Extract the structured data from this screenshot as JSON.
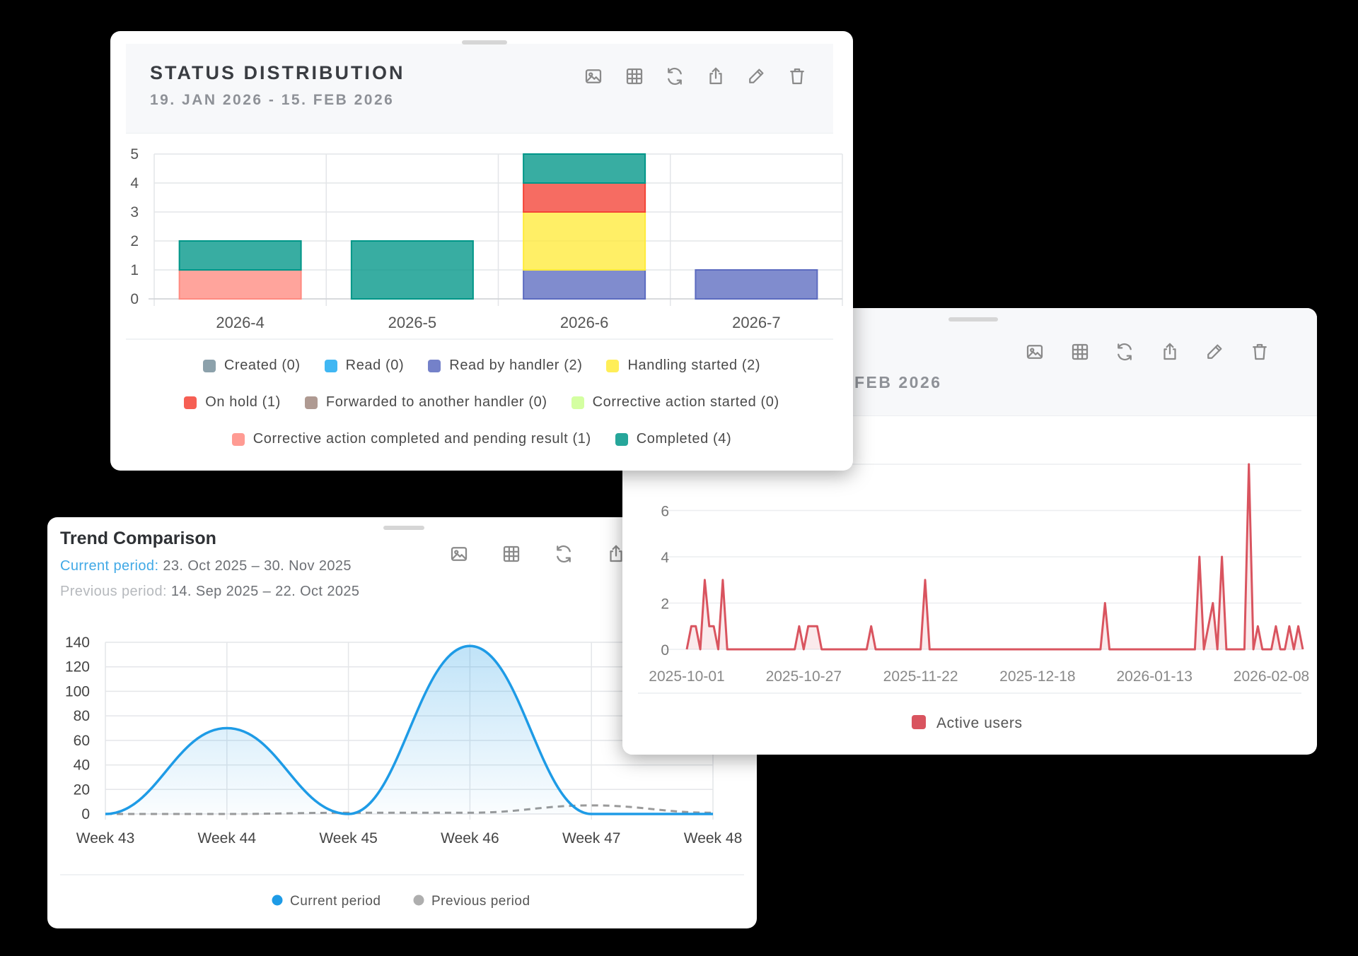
{
  "status_card": {
    "title": "STATUS DISTRIBUTION",
    "date_range": "19. JAN 2026 - 15. FEB 2026",
    "toolbar": [
      "image-icon",
      "table-icon",
      "refresh-icon",
      "share-icon",
      "edit-icon",
      "delete-icon"
    ]
  },
  "active_card": {
    "date_range_fragment": "FEB 2026",
    "toolbar": [
      "image-icon",
      "table-icon",
      "refresh-icon",
      "share-icon",
      "edit-icon",
      "delete-icon"
    ]
  },
  "trend_card": {
    "title": "Trend Comparison",
    "current_label": "Current period:",
    "current_range": "23. Oct 2025 – 30. Nov 2025",
    "previous_label": "Previous period:",
    "previous_range": "14. Sep 2025 – 22. Oct 2025",
    "toolbar": [
      "image-icon",
      "table-icon",
      "refresh-icon",
      "share-icon"
    ]
  },
  "chart_data": [
    {
      "type": "bar",
      "stacked": true,
      "title": "STATUS DISTRIBUTION",
      "categories": [
        "2026-4",
        "2026-5",
        "2026-6",
        "2026-7"
      ],
      "ylim": [
        0,
        5
      ],
      "yticks": [
        0,
        1,
        2,
        3,
        4,
        5
      ],
      "grid": true,
      "legend_position": "bottom",
      "series": [
        {
          "name": "Created (0)",
          "color": "#78909c",
          "values": [
            0,
            0,
            0,
            0
          ]
        },
        {
          "name": "Read (0)",
          "color": "#1eaaf1",
          "values": [
            0,
            0,
            0,
            0
          ]
        },
        {
          "name": "Read by handler (2)",
          "color": "#5c6bc0",
          "values": [
            0,
            0,
            1,
            1
          ]
        },
        {
          "name": "Handling started (2)",
          "color": "#ffeb3b",
          "values": [
            0,
            0,
            2,
            0
          ]
        },
        {
          "name": "On hold (1)",
          "color": "#f44336",
          "values": [
            0,
            0,
            1,
            0
          ]
        },
        {
          "name": "Forwarded to another handler (0)",
          "color": "#a1887f",
          "values": [
            0,
            0,
            0,
            0
          ]
        },
        {
          "name": "Corrective action started (0)",
          "color": "#ccff90",
          "values": [
            0,
            0,
            0,
            0
          ]
        },
        {
          "name": "Corrective action completed and pending result (1)",
          "color": "#ff8a80",
          "values": [
            1,
            0,
            0,
            0
          ]
        },
        {
          "name": "Completed (4)",
          "color": "#009688",
          "values": [
            1,
            2,
            1,
            0
          ]
        }
      ]
    },
    {
      "type": "area",
      "ylim": [
        0,
        8
      ],
      "yticks": [
        0,
        2,
        4,
        6
      ],
      "x_ticks": [
        "2025-10-01",
        "2025-10-27",
        "2025-11-22",
        "2025-12-18",
        "2026-01-13",
        "2026-02-08"
      ],
      "x_start": "2025-10-01",
      "x_end": "2026-02-15",
      "grid": true,
      "legend_position": "bottom",
      "series": [
        {
          "name": "Active users",
          "color": "#d9545f",
          "points": [
            [
              "2025-10-01",
              0
            ],
            [
              "2025-10-02",
              1
            ],
            [
              "2025-10-03",
              1
            ],
            [
              "2025-10-04",
              0
            ],
            [
              "2025-10-05",
              3
            ],
            [
              "2025-10-06",
              1
            ],
            [
              "2025-10-07",
              1
            ],
            [
              "2025-10-08",
              0
            ],
            [
              "2025-10-09",
              3
            ],
            [
              "2025-10-10",
              0
            ],
            [
              "2025-10-25",
              0
            ],
            [
              "2025-10-26",
              1
            ],
            [
              "2025-10-27",
              0
            ],
            [
              "2025-10-28",
              1
            ],
            [
              "2025-10-29",
              1
            ],
            [
              "2025-10-30",
              1
            ],
            [
              "2025-10-31",
              0
            ],
            [
              "2025-11-10",
              0
            ],
            [
              "2025-11-11",
              1
            ],
            [
              "2025-11-12",
              0
            ],
            [
              "2025-11-22",
              0
            ],
            [
              "2025-11-23",
              3
            ],
            [
              "2025-11-24",
              0
            ],
            [
              "2026-01-01",
              0
            ],
            [
              "2026-01-02",
              2
            ],
            [
              "2026-01-03",
              0
            ],
            [
              "2026-01-22",
              0
            ],
            [
              "2026-01-23",
              4
            ],
            [
              "2026-01-24",
              0
            ],
            [
              "2026-01-26",
              2
            ],
            [
              "2026-01-27",
              0
            ],
            [
              "2026-01-28",
              4
            ],
            [
              "2026-01-29",
              0
            ],
            [
              "2026-02-02",
              0
            ],
            [
              "2026-02-03",
              8
            ],
            [
              "2026-02-04",
              0
            ],
            [
              "2026-02-05",
              1
            ],
            [
              "2026-02-06",
              0
            ],
            [
              "2026-02-08",
              0
            ],
            [
              "2026-02-09",
              1
            ],
            [
              "2026-02-10",
              0
            ],
            [
              "2026-02-11",
              0
            ],
            [
              "2026-02-12",
              1
            ],
            [
              "2026-02-13",
              0
            ],
            [
              "2026-02-14",
              1
            ],
            [
              "2026-02-15",
              0
            ]
          ]
        }
      ]
    },
    {
      "type": "line",
      "title": "Trend Comparison",
      "categories": [
        "Week 43",
        "Week 44",
        "Week 45",
        "Week 46",
        "Week 47",
        "Week 48"
      ],
      "ylim": [
        0,
        140
      ],
      "yticks": [
        0,
        20,
        40,
        60,
        80,
        100,
        120,
        140
      ],
      "grid": true,
      "legend_position": "bottom",
      "series": [
        {
          "name": "Current period",
          "color": "#1e9be6",
          "values": [
            0,
            70,
            0,
            137,
            0,
            0
          ]
        },
        {
          "name": "Previous period",
          "color": "#9a9a9a",
          "dashed": true,
          "values": [
            0,
            0,
            1,
            1,
            7,
            1
          ]
        }
      ]
    }
  ]
}
